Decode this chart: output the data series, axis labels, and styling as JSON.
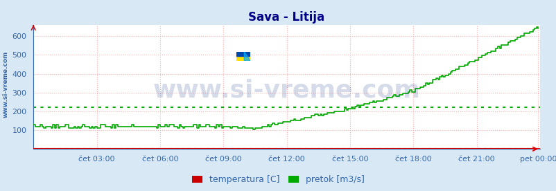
{
  "title": "Sava - Litija",
  "title_color": "#00008B",
  "bg_color": "#d8e8f5",
  "plot_bg_color": "#ffffff",
  "ylabel_left_text": "www.si-vreme.com",
  "watermark_text": "www.si-vreme.com",
  "grid_color": "#ffaaaa",
  "grid_style": ":",
  "x_tick_labels": [
    "čet 03:00",
    "čet 06:00",
    "čet 09:00",
    "čet 12:00",
    "čet 15:00",
    "čet 18:00",
    "čet 21:00",
    "pet 00:00"
  ],
  "x_tick_positions": [
    36,
    72,
    108,
    144,
    180,
    216,
    252,
    287
  ],
  "ylim": [
    0,
    660
  ],
  "xlim": [
    0,
    288
  ],
  "yticks": [
    100,
    200,
    300,
    400,
    500,
    600
  ],
  "temp_color": "#cc0000",
  "flow_color": "#00aa00",
  "legend_labels": [
    "temperatura [C]",
    "pretok [m3/s]"
  ],
  "legend_colors": [
    "#cc0000",
    "#00aa00"
  ],
  "avg_temp_value": 4,
  "avg_flow_value": 220,
  "temp_avg_color": "#dd0000",
  "flow_avg_color": "#00aa00",
  "axis_label_color": "#3366aa",
  "tick_label_color": "#3366aa",
  "title_fontsize": 12,
  "tick_fontsize": 8,
  "legend_fontsize": 9,
  "spine_color": "#3366aa",
  "watermark_color": "#1a3a8a",
  "watermark_alpha": 0.18,
  "watermark_fontsize": 26
}
